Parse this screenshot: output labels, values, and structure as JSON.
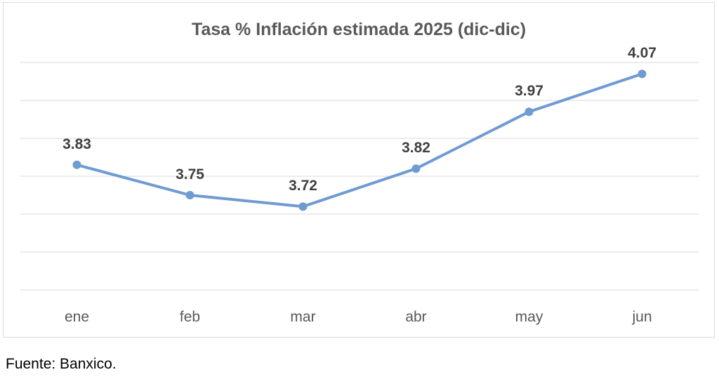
{
  "chart_data": {
    "type": "line",
    "title": "Tasa % Inflación estimada 2025 (dic-dic)",
    "categories": [
      "ene",
      "feb",
      "mar",
      "abr",
      "may",
      "jun"
    ],
    "series": [
      {
        "values": [
          3.83,
          3.75,
          3.72,
          3.82,
          3.97,
          4.07
        ]
      }
    ],
    "data_labels": [
      "3.83",
      "3.75",
      "3.72",
      "3.82",
      "3.97",
      "4.07"
    ],
    "ylim": [
      3.5,
      4.1
    ],
    "grid": true,
    "legend": "none",
    "colors": {
      "line": "#6f9bd3",
      "grid": "#d9d9d9",
      "text": "#404040",
      "axis_text": "#595959"
    }
  },
  "footer": {
    "source": "Fuente: Banxico."
  }
}
